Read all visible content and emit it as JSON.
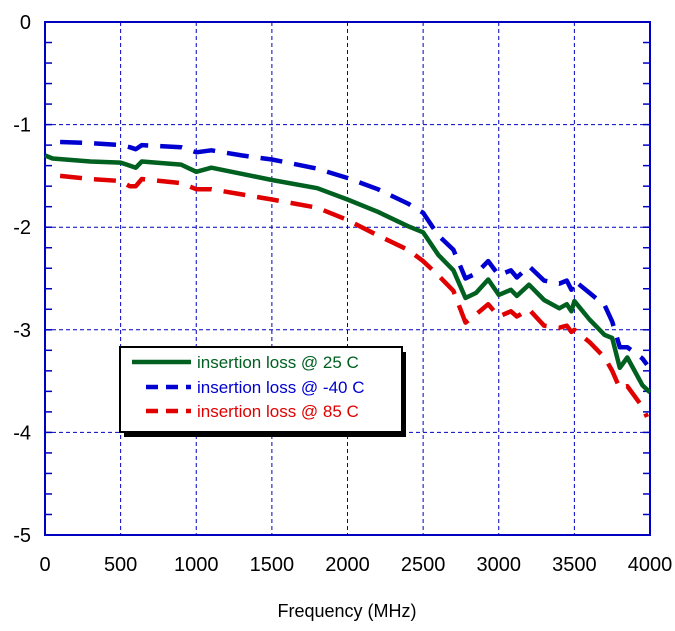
{
  "chart_data": {
    "type": "line",
    "title": "",
    "xlabel": "Frequency (MHz)",
    "ylabel": "",
    "xlim": [
      0,
      4000
    ],
    "ylim": [
      -5,
      0
    ],
    "x_ticks": [
      0,
      500,
      1000,
      1500,
      2000,
      2500,
      3000,
      3500,
      4000
    ],
    "y_ticks": [
      0,
      -1,
      -2,
      -3,
      -4,
      -5
    ],
    "x_tick_labels": [
      "0",
      "500",
      "1000",
      "1500",
      "2000",
      "2500",
      "3000",
      "3500",
      "4000"
    ],
    "y_tick_labels": [
      "0",
      "-1",
      "-2",
      "-3",
      "-4",
      "-5"
    ],
    "y_minor_step": 0.2,
    "grid": true,
    "legend_position": "lower-left",
    "colors": {
      "axis": "#0000c0",
      "grid": "#0000c0"
    },
    "series": [
      {
        "name": "insertion loss @ 25 C",
        "color": "#006020",
        "style": "solid",
        "x": [
          0,
          50,
          300,
          500,
          560,
          600,
          640,
          900,
          1000,
          1100,
          1300,
          1500,
          1800,
          2000,
          2200,
          2400,
          2500,
          2600,
          2700,
          2780,
          2850,
          2930,
          3000,
          3080,
          3120,
          3200,
          3300,
          3400,
          3450,
          3480,
          3500,
          3600,
          3700,
          3750,
          3800,
          3850,
          3950,
          4000
        ],
        "y": [
          -1.3,
          -1.33,
          -1.36,
          -1.37,
          -1.4,
          -1.42,
          -1.36,
          -1.39,
          -1.46,
          -1.42,
          -1.48,
          -1.54,
          -1.62,
          -1.73,
          -1.85,
          -1.99,
          -2.05,
          -2.27,
          -2.42,
          -2.69,
          -2.64,
          -2.51,
          -2.66,
          -2.61,
          -2.67,
          -2.56,
          -2.71,
          -2.79,
          -2.75,
          -2.82,
          -2.72,
          -2.9,
          -3.05,
          -3.08,
          -3.37,
          -3.27,
          -3.54,
          -3.61
        ]
      },
      {
        "name": "insertion loss @ -40 C",
        "color": "#0000d0",
        "style": "dash",
        "x": [
          100,
          300,
          500,
          560,
          600,
          640,
          900,
          1000,
          1100,
          1300,
          1500,
          1800,
          2000,
          2200,
          2400,
          2500,
          2600,
          2700,
          2780,
          2850,
          2930,
          3000,
          3080,
          3120,
          3200,
          3300,
          3400,
          3450,
          3480,
          3500,
          3600,
          3700,
          3750,
          3800,
          3850,
          3950,
          3980
        ],
        "y": [
          -1.17,
          -1.18,
          -1.2,
          -1.22,
          -1.24,
          -1.2,
          -1.22,
          -1.27,
          -1.25,
          -1.3,
          -1.34,
          -1.43,
          -1.52,
          -1.63,
          -1.77,
          -1.86,
          -2.08,
          -2.22,
          -2.5,
          -2.45,
          -2.33,
          -2.47,
          -2.42,
          -2.49,
          -2.38,
          -2.52,
          -2.55,
          -2.52,
          -2.61,
          -2.52,
          -2.64,
          -2.76,
          -2.92,
          -3.17,
          -3.17,
          -3.28,
          -3.34
        ]
      },
      {
        "name": "insertion loss @ 85 C",
        "color": "#e00000",
        "style": "dash",
        "x": [
          100,
          300,
          500,
          560,
          600,
          640,
          900,
          1000,
          1100,
          1300,
          1500,
          1800,
          2000,
          2200,
          2400,
          2500,
          2600,
          2700,
          2780,
          2850,
          2930,
          3000,
          3080,
          3120,
          3200,
          3300,
          3400,
          3450,
          3480,
          3500,
          3600,
          3700,
          3750,
          3800,
          3850,
          3950,
          3980
        ],
        "y": [
          -1.5,
          -1.53,
          -1.55,
          -1.6,
          -1.6,
          -1.53,
          -1.57,
          -1.63,
          -1.63,
          -1.68,
          -1.73,
          -1.81,
          -1.93,
          -2.08,
          -2.22,
          -2.33,
          -2.47,
          -2.62,
          -2.93,
          -2.85,
          -2.75,
          -2.87,
          -2.82,
          -2.87,
          -2.8,
          -2.96,
          -2.98,
          -2.96,
          -3.02,
          -3.0,
          -3.12,
          -3.27,
          -3.4,
          -3.57,
          -3.55,
          -3.75,
          -3.85
        ]
      }
    ]
  }
}
